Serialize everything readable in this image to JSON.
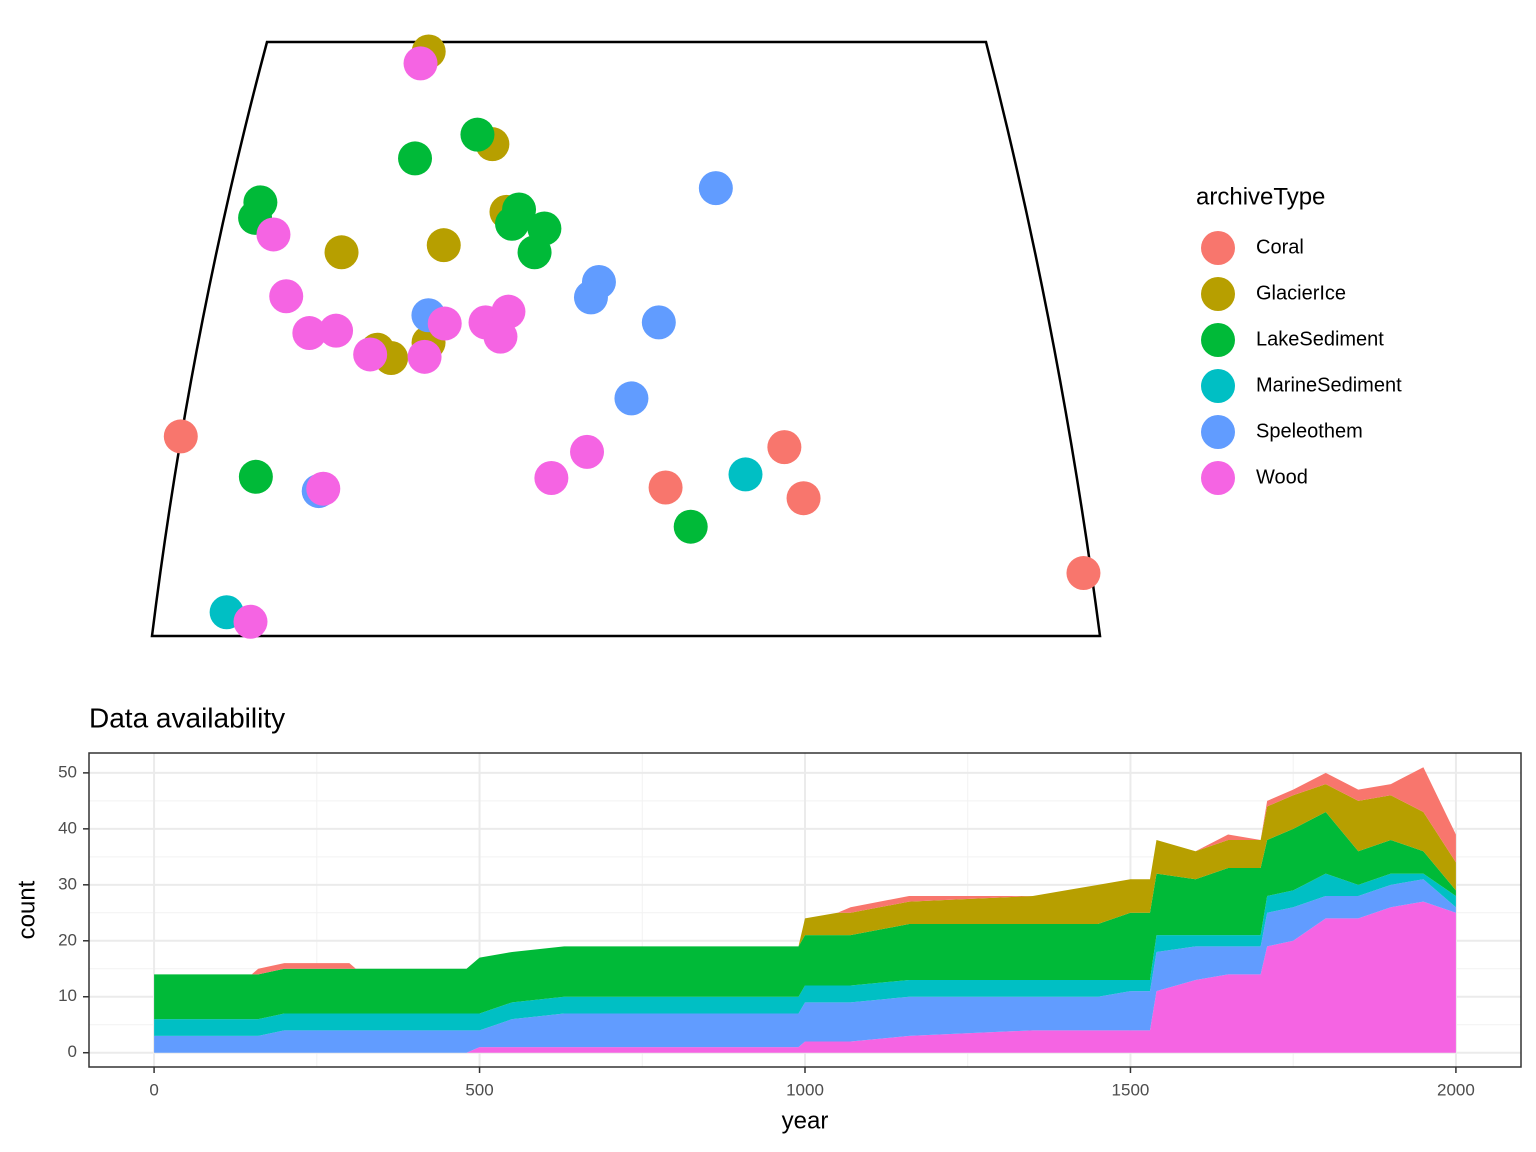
{
  "chart_data": [
    {
      "type": "scatter",
      "legend_title": "archiveType",
      "xlim": [
        73.5,
        136.5
      ],
      "ylim": [
        5,
        55
      ],
      "series": [
        {
          "name": "Coral",
          "color": "#F8766D",
          "x": [
            72.8,
            116.4,
            107.8,
            117.5,
            136.2
          ],
          "values": [
            21.8,
            20.9,
            17.5,
            16.6,
            10.3
          ]
        },
        {
          "name": "GlacierIce",
          "color": "#B79F00",
          "x": [
            87.8,
            93.9,
            95.4,
            82.6,
            90.6,
            90.1,
            86.3,
            87.4
          ],
          "values": [
            54.2,
            46.4,
            40.7,
            37.3,
            37.9,
            29.7,
            29.1,
            28.4
          ]
        },
        {
          "name": "LakeSediment",
          "color": "#00BA38",
          "x": [
            92.6,
            87.6,
            75.5,
            75.3,
            96.4,
            95.9,
            98.5,
            97.8,
            78.7,
            109.5
          ],
          "values": [
            47.2,
            45.2,
            41.5,
            40.2,
            40.9,
            39.7,
            39.3,
            37.3,
            18.4,
            14.2
          ]
        },
        {
          "name": "MarineSediment",
          "color": "#00BFC4",
          "x": [
            113.5,
            78.2
          ],
          "values": [
            18.6,
            7.0
          ]
        },
        {
          "name": "Speleothem",
          "color": "#619CFF",
          "x": [
            112.3,
            102.9,
            102.3,
            107.5,
            89.9,
            105.4,
            83.3
          ],
          "values": [
            42.7,
            34.8,
            33.5,
            31.4,
            32.0,
            25.0,
            17.2
          ]
        },
        {
          "name": "Wood",
          "color": "#F564E3",
          "x": [
            87.2,
            77.0,
            78.8,
            91.2,
            94.3,
            96.0,
            95.5,
            81.0,
            83.0,
            85.8,
            89.9,
            102.2,
            99.7,
            83.6,
            79.9
          ],
          "values": [
            53.2,
            38.8,
            33.6,
            31.3,
            31.4,
            32.3,
            30.2,
            30.5,
            30.7,
            28.7,
            28.5,
            20.5,
            18.3,
            17.4,
            6.2
          ]
        }
      ]
    },
    {
      "type": "area",
      "title": "Data availability",
      "xlabel": "year",
      "ylabel": "count",
      "xlim": [
        -100,
        2100
      ],
      "ylim": [
        -2.55,
        53.55
      ],
      "xticks": [
        0,
        500,
        1000,
        1500,
        2000
      ],
      "yticks": [
        0,
        10,
        20,
        30,
        40,
        50
      ],
      "grid": true,
      "stacked": true,
      "x": [
        0,
        150,
        160,
        200,
        300,
        310,
        480,
        500,
        550,
        630,
        990,
        1000,
        1050,
        1070,
        1160,
        1350,
        1450,
        1500,
        1530,
        1540,
        1600,
        1650,
        1700,
        1710,
        1750,
        1800,
        1850,
        1900,
        1950,
        2000
      ],
      "series": [
        {
          "name": "Wood",
          "color": "#F564E3",
          "values": [
            0,
            0,
            0,
            0,
            0,
            0,
            0,
            1,
            1,
            1,
            1,
            2,
            2,
            2,
            3,
            4,
            4,
            4,
            4,
            11,
            13,
            14,
            14,
            19,
            20,
            24,
            24,
            26,
            27,
            25
          ]
        },
        {
          "name": "Speleothem",
          "color": "#619CFF",
          "values": [
            3,
            3,
            3,
            4,
            4,
            4,
            4,
            3,
            5,
            6,
            6,
            7,
            7,
            7,
            7,
            6,
            6,
            7,
            7,
            7,
            6,
            5,
            5,
            6,
            6,
            4,
            4,
            4,
            4,
            1
          ]
        },
        {
          "name": "MarineSediment",
          "color": "#00BFC4",
          "values": [
            3,
            3,
            3,
            3,
            3,
            3,
            3,
            3,
            3,
            3,
            3,
            3,
            3,
            3,
            3,
            3,
            3,
            2,
            2,
            3,
            2,
            2,
            2,
            3,
            3,
            4,
            2,
            2,
            1,
            2
          ]
        },
        {
          "name": "LakeSediment",
          "color": "#00BA38",
          "values": [
            8,
            8,
            8,
            8,
            8,
            8,
            8,
            10,
            9,
            9,
            9,
            9,
            9,
            9,
            10,
            10,
            10,
            12,
            12,
            11,
            10,
            12,
            12,
            10,
            11,
            11,
            6,
            6,
            4,
            1
          ]
        },
        {
          "name": "GlacierIce",
          "color": "#B79F00",
          "values": [
            0,
            0,
            0,
            0,
            0,
            0,
            0,
            0,
            0,
            0,
            0,
            3,
            4,
            4,
            4,
            5,
            7,
            6,
            6,
            6,
            5,
            5,
            5,
            6,
            6,
            5,
            9,
            8,
            7,
            5
          ]
        },
        {
          "name": "Coral",
          "color": "#F8766D",
          "values": [
            0,
            0,
            1,
            1,
            1,
            0,
            0,
            0,
            0,
            0,
            0,
            0,
            0,
            1,
            1,
            0,
            0,
            0,
            0,
            0,
            0,
            1,
            0,
            1,
            1,
            2,
            2,
            2,
            8,
            5
          ]
        }
      ]
    }
  ]
}
